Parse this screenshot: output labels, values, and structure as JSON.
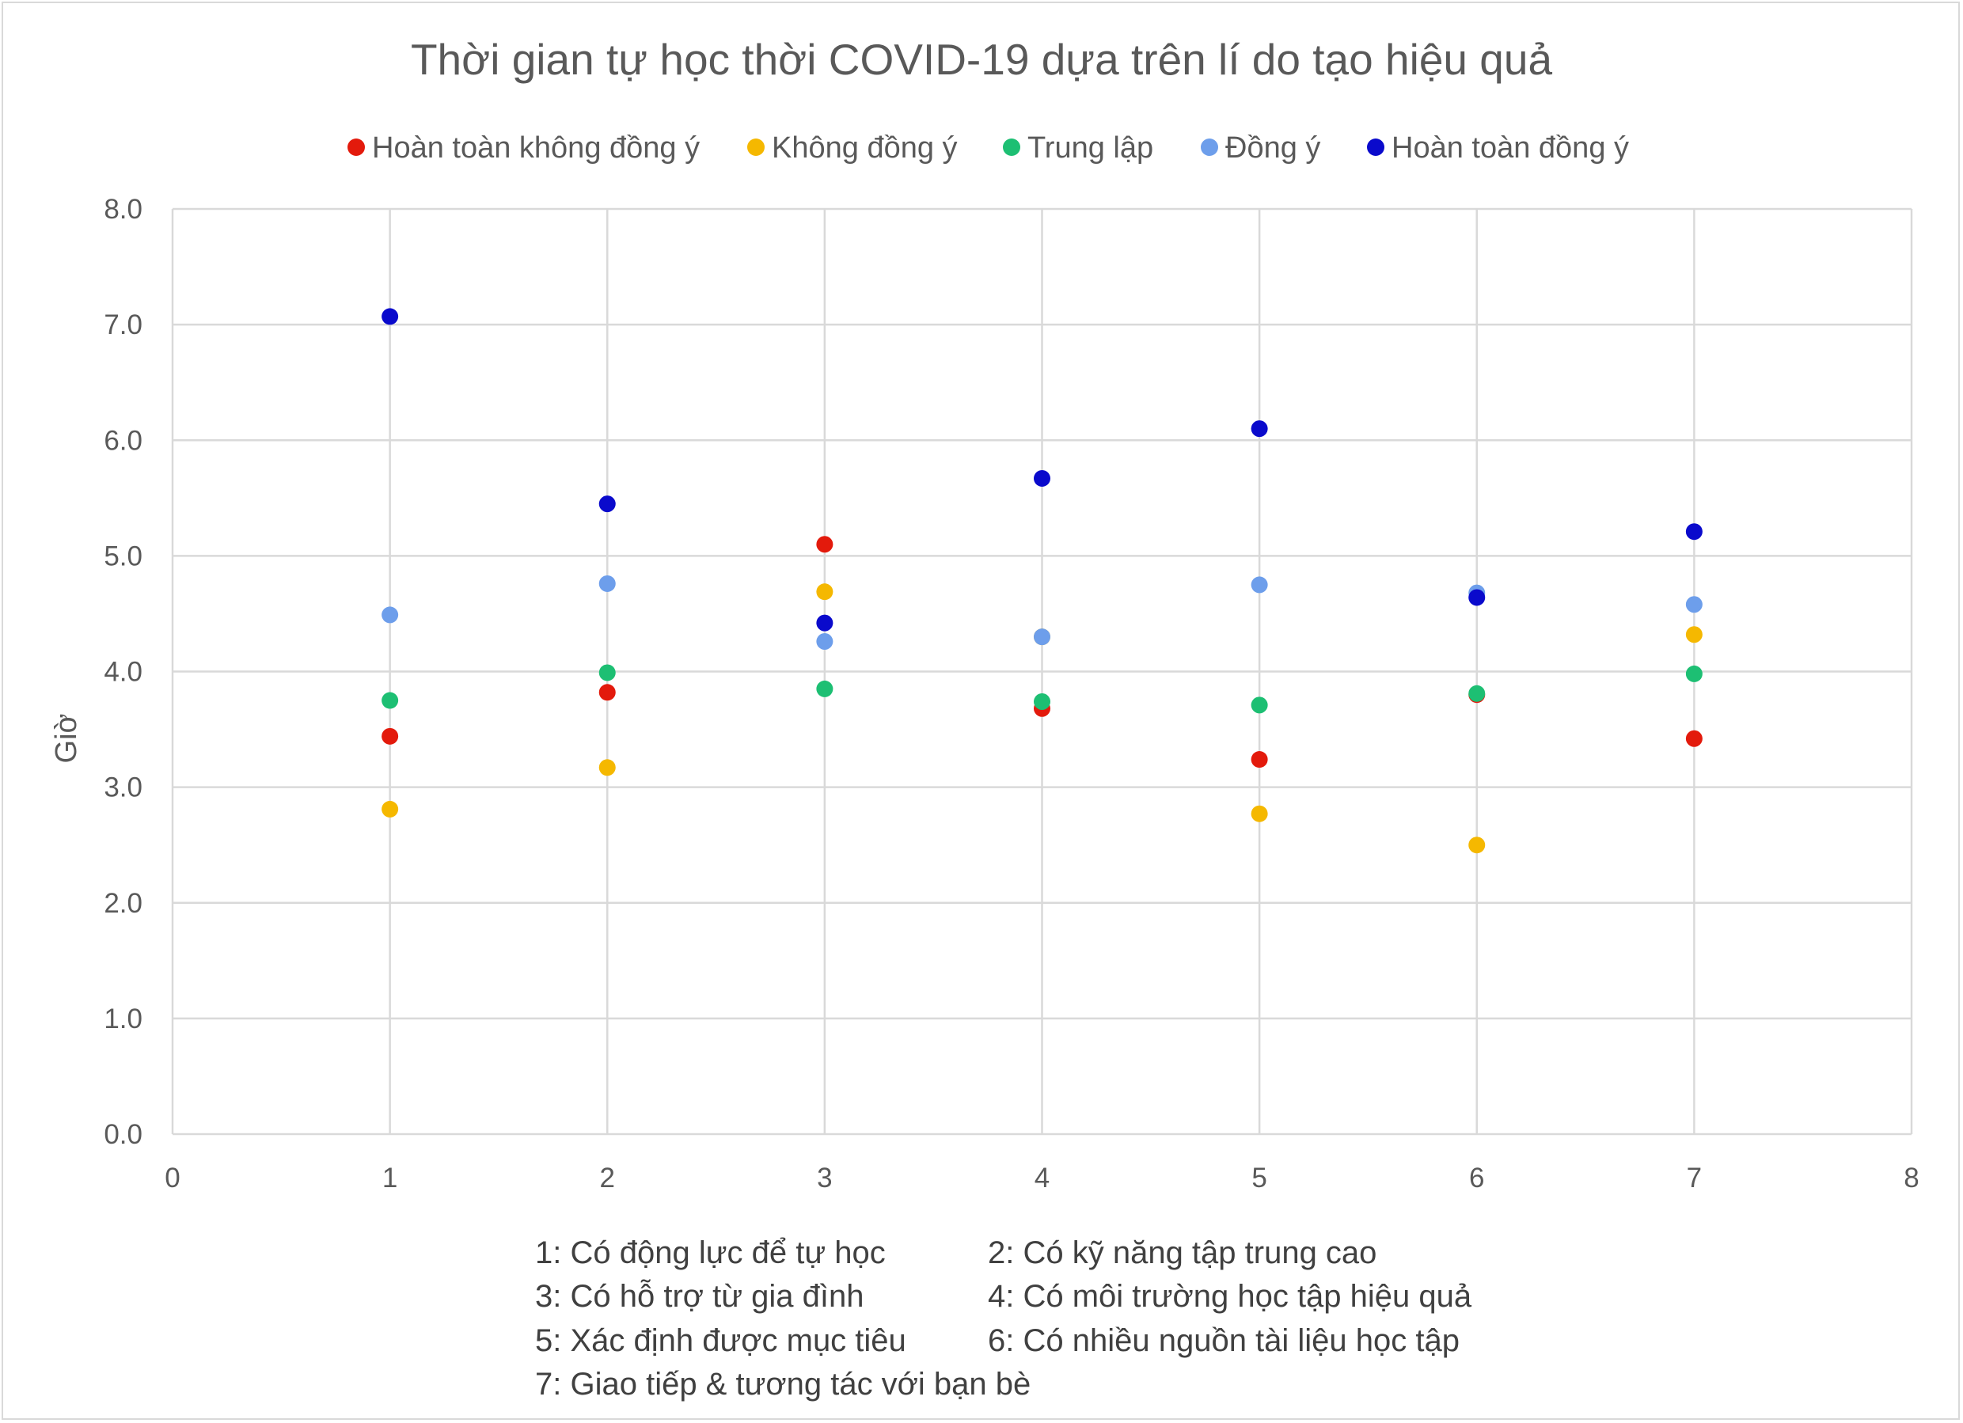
{
  "chart_data": {
    "type": "scatter",
    "title": "Thời gian tự học thời COVID-19 dựa trên lí do tạo hiệu quả",
    "ylabel": "Giờ",
    "xlabel": "",
    "xlim": [
      0,
      8
    ],
    "ylim": [
      0,
      8
    ],
    "x_ticks": [
      "0",
      "1",
      "2",
      "3",
      "4",
      "5",
      "6",
      "7",
      "8"
    ],
    "y_ticks": [
      "0.0",
      "1.0",
      "2.0",
      "3.0",
      "4.0",
      "5.0",
      "6.0",
      "7.0",
      "8.0"
    ],
    "grid": true,
    "legend_position": "top",
    "series": [
      {
        "name": "Hoàn toàn không đồng ý",
        "color": "#e31a0c",
        "x": [
          1,
          2,
          3,
          4,
          5,
          6,
          7
        ],
        "y": [
          3.44,
          3.82,
          5.1,
          3.68,
          3.24,
          3.8,
          3.42
        ]
      },
      {
        "name": "Không đồng ý",
        "color": "#f5b800",
        "x": [
          1,
          2,
          3,
          4,
          5,
          6,
          7
        ],
        "y": [
          2.81,
          3.17,
          4.69,
          4.3,
          2.77,
          2.5,
          4.32
        ]
      },
      {
        "name": "Trung lập",
        "color": "#1dbf73",
        "x": [
          1,
          2,
          3,
          4,
          5,
          6,
          7
        ],
        "y": [
          3.75,
          3.99,
          3.85,
          3.74,
          3.71,
          3.81,
          3.98
        ]
      },
      {
        "name": "Đồng ý",
        "color": "#6d9eeb",
        "x": [
          1,
          2,
          3,
          4,
          5,
          6,
          7
        ],
        "y": [
          4.49,
          4.76,
          4.26,
          4.3,
          4.75,
          4.68,
          4.58
        ]
      },
      {
        "name": "Hoàn toàn đồng ý",
        "color": "#0a0acc",
        "x": [
          1,
          2,
          3,
          4,
          5,
          6,
          7
        ],
        "y": [
          7.07,
          5.45,
          4.42,
          5.67,
          6.1,
          4.64,
          5.21
        ]
      }
    ],
    "notes": [
      "1: Có động lực để tự học",
      "2: Có kỹ năng tập trung cao",
      "3: Có hỗ trợ từ gia đình",
      "4: Có môi trường học tập hiệu quả",
      "5: Xác định được mục tiêu",
      "6: Có nhiều nguồn tài liệu học tập",
      "7: Giao tiếp & tương tác với bạn bè"
    ]
  }
}
